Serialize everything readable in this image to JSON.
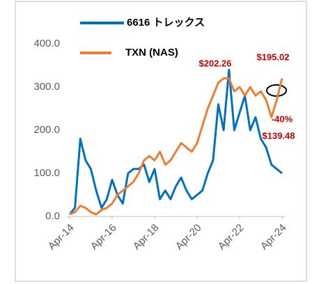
{
  "chart_data": {
    "type": "line",
    "categories": [
      "Apr-14",
      null,
      null,
      null,
      null,
      null,
      null,
      null,
      "Apr-16",
      null,
      null,
      null,
      null,
      null,
      null,
      null,
      "Apr-18",
      null,
      null,
      null,
      null,
      null,
      null,
      null,
      "Apr-20",
      null,
      null,
      null,
      null,
      null,
      null,
      null,
      "Apr-22",
      null,
      null,
      null,
      null,
      null,
      null,
      null,
      "Apr-24"
    ],
    "series": [
      {
        "name": "6616 トレックス",
        "color": "#0070c0",
        "values": [
          5,
          20,
          180,
          130,
          110,
          60,
          20,
          40,
          85,
          50,
          30,
          100,
          110,
          110,
          120,
          80,
          110,
          40,
          60,
          40,
          70,
          90,
          60,
          40,
          50,
          60,
          100,
          130,
          260,
          200,
          340,
          200,
          240,
          280,
          200,
          230,
          180,
          160,
          120,
          110,
          100
        ]
      },
      {
        "name": "TXN (NAS)",
        "color": "#ed7d31",
        "values": [
          5,
          10,
          25,
          20,
          10,
          5,
          15,
          20,
          30,
          50,
          60,
          70,
          80,
          100,
          130,
          140,
          130,
          150,
          120,
          130,
          150,
          170,
          160,
          150,
          170,
          210,
          250,
          280,
          310,
          320,
          320,
          290,
          300,
          280,
          300,
          280,
          290,
          270,
          230,
          270,
          320
        ]
      }
    ],
    "ylim": [
      0,
      400
    ],
    "yticks": [
      {
        "value": 0,
        "label": "0.0"
      },
      {
        "value": 100,
        "label": "100.0"
      },
      {
        "value": 200,
        "label": "200.0"
      },
      {
        "value": 300,
        "label": "300.0"
      },
      {
        "value": 400,
        "label": "400.0"
      }
    ],
    "grid": false,
    "legend": "top",
    "annotations": [
      "$202.26",
      "$195.02",
      "-40%",
      "$139.48"
    ]
  }
}
